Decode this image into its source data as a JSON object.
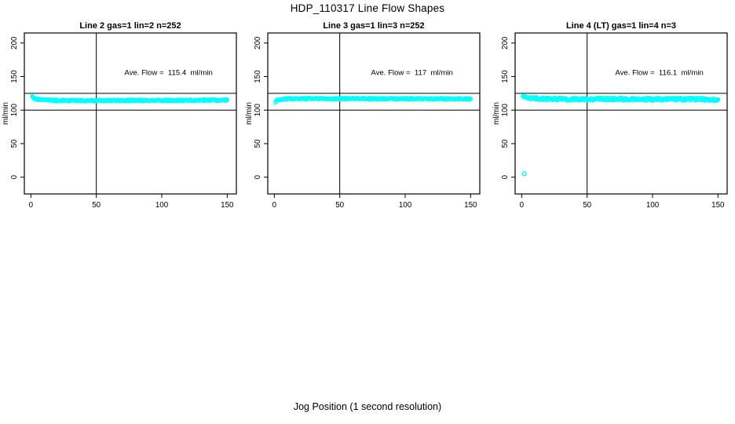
{
  "title": "HDP_110317  Line Flow Shapes",
  "xlabel": "Jog Position (1 second resolution)",
  "ylabel": "ml/min",
  "colors": {
    "points": "#00FFFF",
    "lines": "#000000",
    "background": "#FFFFFF"
  },
  "chart_data": [
    {
      "type": "scatter",
      "title": "Line 2 gas=1 lin=2 n=252",
      "line": 2,
      "gas": 1,
      "lin": 2,
      "n": 252,
      "annotation": "Ave. Flow =  115.4  ml/min",
      "ave_flow": 115.4,
      "x_ticks": [
        0,
        50,
        100,
        150
      ],
      "y_ticks": [
        0,
        50,
        100,
        150,
        200
      ],
      "xlim": [
        -5,
        157
      ],
      "ylim": [
        -25,
        215
      ],
      "vline_x": 50,
      "hlines_y": [
        125,
        100
      ],
      "band_anchors": [
        [
          1,
          120
        ],
        [
          2,
          118
        ],
        [
          3,
          117
        ],
        [
          5,
          116
        ],
        [
          8,
          115.3
        ],
        [
          12,
          114.8
        ],
        [
          20,
          114.4
        ],
        [
          35,
          114.2
        ],
        [
          60,
          114.3
        ],
        [
          90,
          114.5
        ],
        [
          120,
          114.6
        ],
        [
          150,
          114.9
        ]
      ],
      "jitter": 1.1,
      "outliers": []
    },
    {
      "type": "scatter",
      "title": "Line 3 gas=1 lin=3 n=252",
      "line": 3,
      "gas": 1,
      "lin": 3,
      "n": 252,
      "annotation": "Ave. Flow =  117  ml/min",
      "ave_flow": 117,
      "x_ticks": [
        0,
        50,
        100,
        150
      ],
      "y_ticks": [
        0,
        50,
        100,
        150,
        200
      ],
      "xlim": [
        -5,
        157
      ],
      "ylim": [
        -25,
        215
      ],
      "vline_x": 50,
      "hlines_y": [
        125,
        100
      ],
      "band_anchors": [
        [
          1,
          112.5
        ],
        [
          2,
          114.5
        ],
        [
          3,
          115.5
        ],
        [
          5,
          116.3
        ],
        [
          10,
          116.8
        ],
        [
          20,
          117
        ],
        [
          50,
          117.1
        ],
        [
          90,
          117
        ],
        [
          120,
          116.9
        ],
        [
          150,
          116.7
        ]
      ],
      "jitter": 1.0,
      "outliers": []
    },
    {
      "type": "scatter",
      "title": "Line 4 (LT) gas=1 lin=4 n=3",
      "line": 4,
      "line_note": "LT",
      "gas": 1,
      "lin": 4,
      "n": 3,
      "annotation": "Ave. Flow =  116.1  ml/min",
      "ave_flow": 116.1,
      "x_ticks": [
        0,
        50,
        100,
        150
      ],
      "y_ticks": [
        0,
        50,
        100,
        150,
        200
      ],
      "xlim": [
        -5,
        157
      ],
      "ylim": [
        -25,
        215
      ],
      "vline_x": 50,
      "hlines_y": [
        125,
        100
      ],
      "band_anchors": [
        [
          1,
          121
        ],
        [
          2,
          120
        ],
        [
          4,
          119
        ],
        [
          7,
          118
        ],
        [
          12,
          117.2
        ],
        [
          20,
          116.6
        ],
        [
          40,
          116.3
        ],
        [
          70,
          116.5
        ],
        [
          100,
          116.1
        ],
        [
          130,
          116.3
        ],
        [
          150,
          115.8
        ]
      ],
      "jitter": 2.0,
      "outliers": [
        [
          2,
          5
        ]
      ]
    }
  ]
}
